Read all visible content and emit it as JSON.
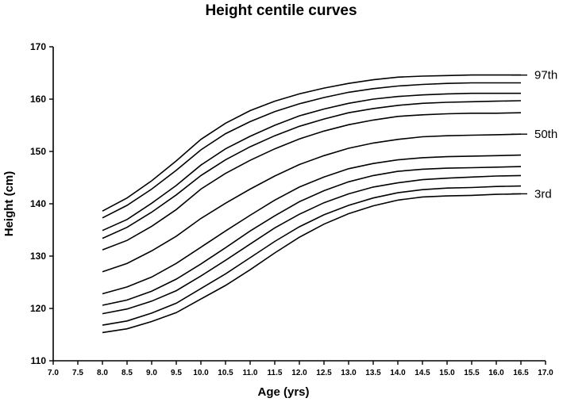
{
  "chart_data": {
    "type": "line",
    "title": "Height centile curves",
    "xlabel": "Age (yrs)",
    "ylabel": "Height (cm)",
    "xlim": [
      7.0,
      17.0
    ],
    "ylim": [
      110,
      170
    ],
    "x_ticks": [
      "7.0",
      "7.5",
      "8.0",
      "8.5",
      "9.0",
      "9.5",
      "10.0",
      "10.5",
      "11.0",
      "11.5",
      "12.0",
      "12.5",
      "13.0",
      "13.5",
      "14.0",
      "14.5",
      "15.0",
      "15.5",
      "16.0",
      "16.5",
      "17.0"
    ],
    "y_ticks": [
      "110",
      "120",
      "130",
      "140",
      "150",
      "160",
      "170"
    ],
    "grid": false,
    "legend": "none",
    "x": [
      8.0,
      8.5,
      9.0,
      9.5,
      10.0,
      10.5,
      11.0,
      11.5,
      12.0,
      12.5,
      13.0,
      13.5,
      14.0,
      14.5,
      15.0,
      15.5,
      16.0,
      16.5
    ],
    "series": [
      {
        "values": [
          115.4,
          116.1,
          117.5,
          119.2,
          121.8,
          124.4,
          127.4,
          130.6,
          133.6,
          136.1,
          138.1,
          139.6,
          140.7,
          141.3,
          141.5,
          141.6,
          141.8,
          141.9
        ]
      },
      {
        "values": [
          116.8,
          117.6,
          119.1,
          121.0,
          123.8,
          126.6,
          129.7,
          132.8,
          135.6,
          137.9,
          139.7,
          141.1,
          142.1,
          142.7,
          143.0,
          143.1,
          143.3,
          143.4
        ]
      },
      {
        "values": [
          119.0,
          119.9,
          121.4,
          123.4,
          126.2,
          129.2,
          132.3,
          135.4,
          138.0,
          140.2,
          141.9,
          143.2,
          144.0,
          144.6,
          144.9,
          145.1,
          145.3,
          145.4
        ]
      },
      {
        "values": [
          120.6,
          121.6,
          123.3,
          125.6,
          128.5,
          131.6,
          134.8,
          137.7,
          140.4,
          142.5,
          144.2,
          145.4,
          146.2,
          146.6,
          146.8,
          146.9,
          147.0,
          147.1
        ]
      },
      {
        "values": [
          122.8,
          124.1,
          126.0,
          128.6,
          131.7,
          134.8,
          137.8,
          140.7,
          143.2,
          145.1,
          146.7,
          147.7,
          148.4,
          148.8,
          149.0,
          149.1,
          149.2,
          149.3
        ]
      },
      {
        "values": [
          127.0,
          128.6,
          131.0,
          133.8,
          137.2,
          140.1,
          142.8,
          145.3,
          147.5,
          149.2,
          150.6,
          151.6,
          152.3,
          152.8,
          153.0,
          153.1,
          153.2,
          153.3
        ]
      },
      {
        "values": [
          131.2,
          133.0,
          135.7,
          138.9,
          142.8,
          145.8,
          148.3,
          150.5,
          152.4,
          153.9,
          155.1,
          156.0,
          156.7,
          157.0,
          157.2,
          157.3,
          157.3,
          157.4
        ]
      },
      {
        "values": [
          133.4,
          135.5,
          138.4,
          141.7,
          145.4,
          148.4,
          150.9,
          153.0,
          154.8,
          156.2,
          157.4,
          158.2,
          158.8,
          159.2,
          159.4,
          159.5,
          159.6,
          159.7
        ]
      },
      {
        "values": [
          134.9,
          137.0,
          140.1,
          143.5,
          147.4,
          150.5,
          152.9,
          155.0,
          156.8,
          158.1,
          159.2,
          160.0,
          160.5,
          160.8,
          161.0,
          161.1,
          161.1,
          161.1
        ]
      },
      {
        "values": [
          137.3,
          139.7,
          142.8,
          146.4,
          150.3,
          153.4,
          155.7,
          157.6,
          159.1,
          160.3,
          161.3,
          162.0,
          162.5,
          162.8,
          163.0,
          163.1,
          163.1,
          163.1
        ]
      },
      {
        "values": [
          138.6,
          141.1,
          144.4,
          148.2,
          152.3,
          155.4,
          157.8,
          159.6,
          161.0,
          162.1,
          163.0,
          163.7,
          164.2,
          164.4,
          164.5,
          164.6,
          164.6,
          164.6
        ]
      }
    ],
    "annotations": [
      {
        "text": "97th",
        "y": 164.6
      },
      {
        "text": "50th",
        "y": 153.3
      },
      {
        "text": "3rd",
        "y": 141.9
      }
    ]
  }
}
